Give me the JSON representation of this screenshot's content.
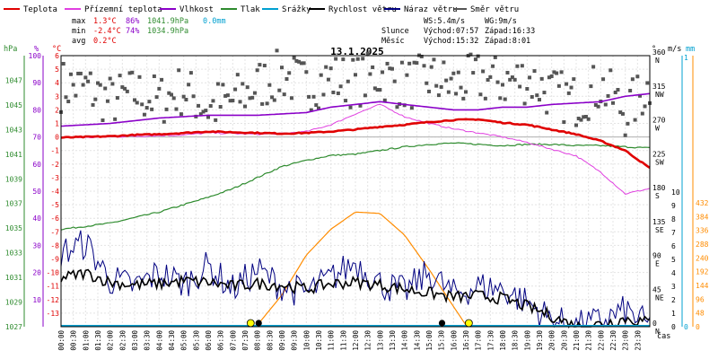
{
  "legend": [
    {
      "label": "Teplota",
      "color": "#e00000"
    },
    {
      "label": "Přízemní teplota",
      "color": "#e040e0"
    },
    {
      "label": "Vlhkost",
      "color": "#8a00c8"
    },
    {
      "label": "Tlak",
      "color": "#2e8b2e"
    },
    {
      "label": "Srážky",
      "color": "#00a0d0"
    },
    {
      "label": "Rychlost větru",
      "color": "#000000"
    },
    {
      "label": "Náraz větru",
      "color": "#000080"
    },
    {
      "label": "Směr větru",
      "color": "#555555"
    }
  ],
  "stats": {
    "max_label": "max",
    "max_temp": "1.3°C",
    "max_hum": "86%",
    "max_press": "1041.9hPa",
    "max_rain": "0.0mm",
    "min_label": "min",
    "min_temp": "-2.4°C",
    "min_hum": "74%",
    "min_press": "1034.9hPa",
    "avg_label": "avg",
    "avg_temp": "0.2°C"
  },
  "wind_info": {
    "ws": "WS:5.4m/s",
    "wg": "WG:9m/s",
    "sun_label": "Slunce",
    "sun_rise": "Východ:07:57",
    "sun_set": "Západ:16:33",
    "moon_label": "Měsíc",
    "moon_rise": "Východ:15:32",
    "moon_set": "Západ:8:01"
  },
  "axis_units": {
    "hpa": "hPa",
    "pct": "%",
    "degc": "°C",
    "deg": "°",
    "ms": "m/s",
    "mm": "mm",
    "cas": "čas"
  },
  "chart_data": {
    "type": "line",
    "title": "13.1.2025",
    "xlabel": "čas",
    "x_ticks": [
      "00:00",
      "00:30",
      "01:00",
      "01:30",
      "02:00",
      "02:30",
      "03:00",
      "03:30",
      "04:00",
      "04:30",
      "05:00",
      "05:30",
      "06:00",
      "06:30",
      "07:00",
      "07:30",
      "08:00",
      "08:30",
      "09:00",
      "09:30",
      "10:00",
      "10:30",
      "11:00",
      "11:30",
      "12:00",
      "12:30",
      "13:00",
      "13:30",
      "14:00",
      "14:30",
      "15:00",
      "15:30",
      "16:00",
      "16:30",
      "17:00",
      "17:30",
      "18:00",
      "18:30",
      "19:00",
      "19:30",
      "20:00",
      "20:30",
      "21:00",
      "21:30",
      "22:00",
      "22:30",
      "23:00",
      "23:30"
    ],
    "axes": {
      "pressure_hpa": {
        "ticks": [
          1027,
          1029,
          1031,
          1033,
          1035,
          1037,
          1039,
          1041,
          1043,
          1045,
          1047
        ],
        "range": [
          1027,
          1049
        ]
      },
      "humidity_pct": {
        "ticks": [
          10,
          20,
          30,
          40,
          50,
          60,
          70,
          80,
          90,
          100
        ],
        "range": [
          0,
          100
        ]
      },
      "temp_c": {
        "ticks": [
          6,
          5,
          4,
          3,
          2,
          1,
          0,
          -1,
          -2,
          -3,
          -4,
          -5,
          -6,
          -7,
          -8,
          -9,
          -10,
          -11,
          -12,
          -13
        ],
        "range": [
          -14,
          6
        ]
      },
      "wind_dir_deg": {
        "ticks": [
          {
            "v": 360,
            "l": "N"
          },
          {
            "v": 315,
            "l": "NW"
          },
          {
            "v": 270,
            "l": "W"
          },
          {
            "v": 225,
            "l": "SW"
          },
          {
            "v": 180,
            "l": "S"
          },
          {
            "v": 135,
            "l": "SE"
          },
          {
            "v": 90,
            "l": "E"
          },
          {
            "v": 45,
            "l": "NE"
          },
          {
            "v": 0,
            "l": "N"
          }
        ],
        "range": [
          0,
          360
        ]
      },
      "wind_ms": {
        "ticks": [
          10,
          9,
          8,
          7,
          6,
          5,
          4,
          3,
          2,
          1,
          0
        ],
        "range": [
          0,
          10
        ]
      },
      "rain_mm": {
        "ticks": [
          1,
          0
        ],
        "range": [
          0,
          1
        ]
      },
      "sun_wm2": {
        "ticks": [
          432,
          384,
          336,
          288,
          240,
          192,
          144,
          96,
          48,
          0
        ],
        "range": [
          0,
          432
        ]
      }
    },
    "series": {
      "temperature": {
        "name": "Teplota",
        "color": "#e00000",
        "points": [
          [
            0,
            -0.05
          ],
          [
            1,
            0.0
          ],
          [
            2,
            0.05
          ],
          [
            3,
            0.15
          ],
          [
            4,
            0.2
          ],
          [
            5,
            0.3
          ],
          [
            6,
            0.4
          ],
          [
            7,
            0.35
          ],
          [
            8,
            0.3
          ],
          [
            9,
            0.25
          ],
          [
            10,
            0.3
          ],
          [
            11,
            0.4
          ],
          [
            12,
            0.55
          ],
          [
            13,
            0.75
          ],
          [
            14,
            0.9
          ],
          [
            15,
            1.1
          ],
          [
            16,
            1.25
          ],
          [
            17,
            1.3
          ],
          [
            18,
            1.05
          ],
          [
            19,
            0.9
          ],
          [
            20,
            0.55
          ],
          [
            21,
            0.2
          ],
          [
            22,
            -0.3
          ],
          [
            23,
            -1.0
          ],
          [
            24,
            -2.3
          ]
        ]
      },
      "ground_temp": {
        "name": "Přízemní teplota",
        "color": "#e040e0",
        "points": [
          [
            0,
            0.0
          ],
          [
            1,
            -0.05
          ],
          [
            2,
            0.0
          ],
          [
            3,
            0.05
          ],
          [
            4,
            0.1
          ],
          [
            5,
            0.15
          ],
          [
            6,
            0.3
          ],
          [
            7,
            0.25
          ],
          [
            8,
            0.2
          ],
          [
            9,
            0.25
          ],
          [
            10,
            0.4
          ],
          [
            11,
            0.9
          ],
          [
            12,
            1.7
          ],
          [
            13,
            2.4
          ],
          [
            14,
            1.5
          ],
          [
            15,
            1.0
          ],
          [
            16,
            0.6
          ],
          [
            17,
            0.3
          ],
          [
            18,
            0.0
          ],
          [
            19,
            -0.4
          ],
          [
            20,
            -0.9
          ],
          [
            21,
            -1.4
          ],
          [
            22,
            -2.6
          ],
          [
            23,
            -4.2
          ],
          [
            24,
            -3.8
          ]
        ]
      },
      "humidity": {
        "name": "Vlhkost",
        "color": "#8a00c8",
        "points": [
          [
            0,
            74
          ],
          [
            2,
            75
          ],
          [
            4,
            77
          ],
          [
            6,
            78
          ],
          [
            8,
            78
          ],
          [
            10,
            79
          ],
          [
            11,
            81
          ],
          [
            12,
            82
          ],
          [
            13,
            83
          ],
          [
            14,
            82
          ],
          [
            15,
            81
          ],
          [
            16,
            80
          ],
          [
            17,
            80
          ],
          [
            18,
            81
          ],
          [
            19,
            81
          ],
          [
            20,
            82
          ],
          [
            22,
            83
          ],
          [
            23,
            85
          ],
          [
            24,
            86
          ]
        ]
      },
      "pressure": {
        "name": "Tlak",
        "color": "#2e8b2e",
        "points": [
          [
            0,
            1034.9
          ],
          [
            2,
            1035.4
          ],
          [
            4,
            1036.3
          ],
          [
            6,
            1037.5
          ],
          [
            7,
            1038.2
          ],
          [
            8,
            1039.1
          ],
          [
            9,
            1040.0
          ],
          [
            10,
            1040.5
          ],
          [
            11,
            1040.9
          ],
          [
            12,
            1041.0
          ],
          [
            13,
            1041.3
          ],
          [
            14,
            1041.6
          ],
          [
            15,
            1041.8
          ],
          [
            16,
            1041.9
          ],
          [
            17,
            1041.8
          ],
          [
            18,
            1041.7
          ],
          [
            19,
            1041.8
          ],
          [
            20,
            1041.8
          ],
          [
            21,
            1041.7
          ],
          [
            22,
            1041.7
          ],
          [
            23,
            1041.6
          ],
          [
            24,
            1041.5
          ]
        ]
      },
      "wind_speed": {
        "name": "Rychlost větru",
        "color": "#000000",
        "points": [
          [
            0,
            3.6
          ],
          [
            1,
            4.0
          ],
          [
            2,
            3.3
          ],
          [
            3,
            3.1
          ],
          [
            4,
            3.2
          ],
          [
            5,
            3.4
          ],
          [
            6,
            3.3
          ],
          [
            7,
            3.0
          ],
          [
            8,
            3.2
          ],
          [
            9,
            3.1
          ],
          [
            10,
            2.8
          ],
          [
            11,
            3.2
          ],
          [
            12,
            3.3
          ],
          [
            13,
            3.1
          ],
          [
            14,
            2.8
          ],
          [
            15,
            2.5
          ],
          [
            16,
            2.2
          ],
          [
            17,
            2.3
          ],
          [
            18,
            2.1
          ],
          [
            19,
            1.5
          ],
          [
            20,
            0.8
          ],
          [
            21,
            0.0
          ],
          [
            22,
            0.2
          ],
          [
            23,
            0.6
          ],
          [
            24,
            0.3
          ]
        ]
      },
      "wind_gust": {
        "name": "Náraz větru",
        "color": "#000080",
        "points": [
          [
            0,
            5.5
          ],
          [
            1,
            6.2
          ],
          [
            2,
            3.5
          ],
          [
            3,
            3.0
          ],
          [
            4,
            4.0
          ],
          [
            5,
            3.2
          ],
          [
            6,
            4.5
          ],
          [
            7,
            2.8
          ],
          [
            8,
            4.2
          ],
          [
            9,
            3.0
          ],
          [
            10,
            2.5
          ],
          [
            11,
            3.6
          ],
          [
            12,
            4.8
          ],
          [
            13,
            3.2
          ],
          [
            14,
            2.6
          ],
          [
            15,
            4.0
          ],
          [
            16,
            2.4
          ],
          [
            17,
            3.0
          ],
          [
            18,
            2.8
          ],
          [
            19,
            1.8
          ],
          [
            20,
            0.5
          ],
          [
            21,
            0.0
          ],
          [
            22,
            0.4
          ],
          [
            23,
            1.2
          ],
          [
            24,
            0.0
          ]
        ]
      },
      "wind_dir": {
        "name": "Směr větru",
        "color": "#555555",
        "points": [
          [
            0,
            320
          ],
          [
            1,
            318
          ],
          [
            2,
            300
          ],
          [
            3,
            310
          ],
          [
            4,
            300
          ],
          [
            5,
            315
          ],
          [
            6,
            290
          ],
          [
            7,
            300
          ],
          [
            8,
            320
          ],
          [
            9,
            335
          ],
          [
            10,
            320
          ],
          [
            11,
            330
          ],
          [
            12,
            325
          ],
          [
            13,
            335
          ],
          [
            14,
            320
          ],
          [
            15,
            330
          ],
          [
            16,
            320
          ],
          [
            17,
            330
          ],
          [
            18,
            325
          ],
          [
            19,
            330
          ],
          [
            20,
            310
          ],
          [
            21,
            300
          ],
          [
            22,
            320
          ],
          [
            23,
            285
          ],
          [
            24,
            320
          ]
        ]
      },
      "solar": {
        "name": "",
        "color": "#ff8c00",
        "points": [
          [
            7.95,
            0
          ],
          [
            9,
            110
          ],
          [
            10,
            250
          ],
          [
            11,
            340
          ],
          [
            12,
            400
          ],
          [
            13,
            395
          ],
          [
            14,
            320
          ],
          [
            15,
            200
          ],
          [
            16,
            70
          ],
          [
            16.55,
            0
          ]
        ]
      },
      "rain": {
        "name": "Srážky",
        "color": "#00a0d0",
        "points": [
          [
            0,
            0
          ],
          [
            24,
            0
          ]
        ]
      }
    },
    "sun_rise_h": 7.95,
    "sun_set_h": 16.55,
    "moon_rise_h": 15.53,
    "moon_set_h": 8.02,
    "grid": true
  }
}
